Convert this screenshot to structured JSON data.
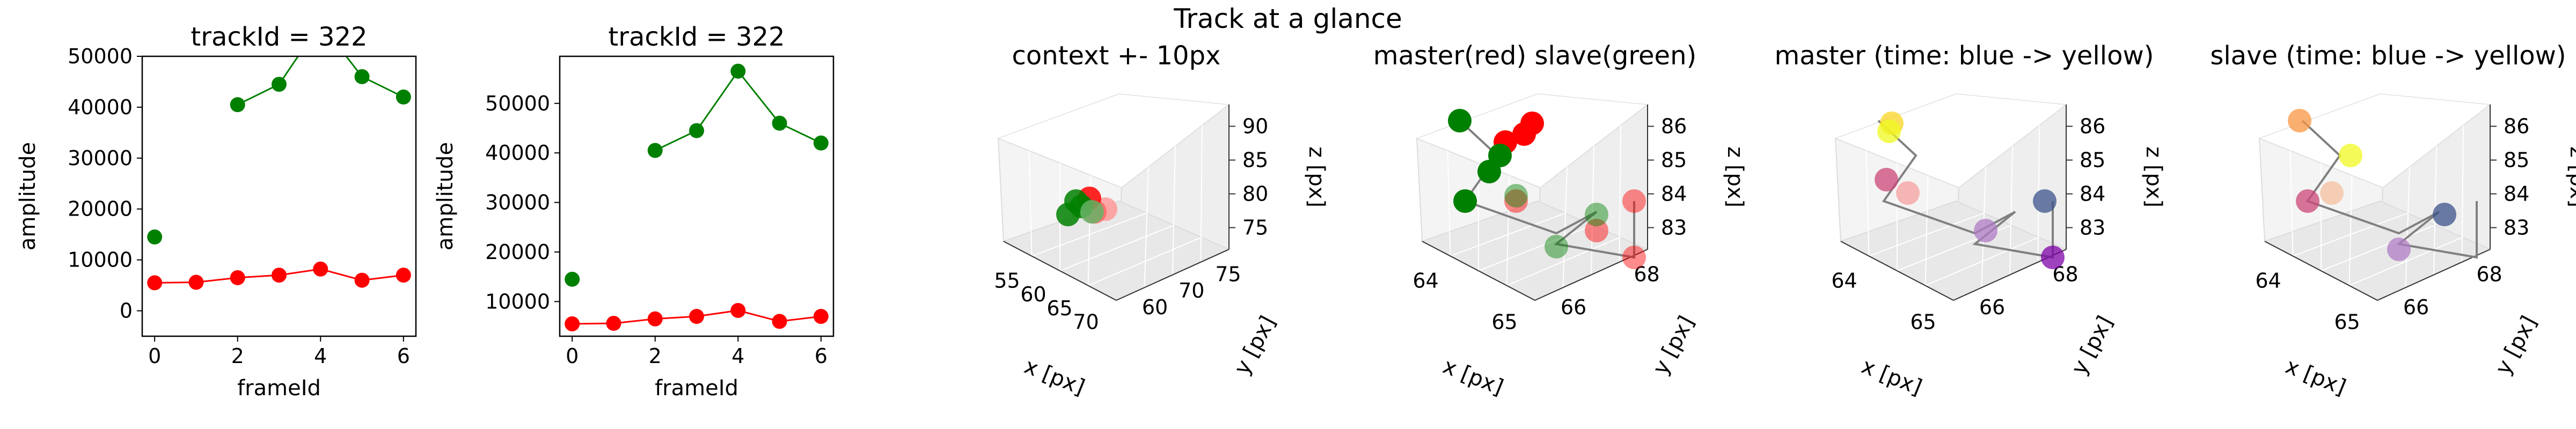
{
  "suptitle": "Track at a glance",
  "colors": {
    "master": "#ff0000",
    "slave": "#008000",
    "track_line": "#808080",
    "pane": "#f2f2f2"
  },
  "chart_data": [
    {
      "type": "line",
      "title": "trackId = 322",
      "xlabel": "frameId",
      "ylabel": "amplitude",
      "xlim": [
        -0.3,
        6.3
      ],
      "ylim": [
        -5000,
        50000
      ],
      "xticks": [
        0,
        2,
        4,
        6
      ],
      "yticks": [
        0,
        10000,
        20000,
        30000,
        40000,
        50000
      ],
      "series": [
        {
          "color": "#ff0000",
          "x": [
            0,
            1,
            2,
            3,
            4,
            5,
            6
          ],
          "y": [
            5500,
            5600,
            6500,
            7000,
            8200,
            6000,
            7000
          ]
        },
        {
          "color": "#008000",
          "x": [
            0
          ],
          "y": [
            14500
          ]
        },
        {
          "color": "#008000",
          "x": [
            2,
            3,
            4,
            5,
            6
          ],
          "y": [
            40500,
            44500,
            56500,
            46000,
            42000
          ]
        }
      ]
    },
    {
      "type": "line",
      "title": "trackId = 322",
      "xlabel": "frameId",
      "ylabel": "amplitude",
      "xlim": [
        -0.3,
        6.3
      ],
      "ylim": [
        3000,
        59500
      ],
      "xticks": [
        0,
        2,
        4,
        6
      ],
      "yticks": [
        10000,
        20000,
        30000,
        40000,
        50000
      ],
      "series": [
        {
          "color": "#ff0000",
          "x": [
            0,
            1,
            2,
            3,
            4,
            5,
            6
          ],
          "y": [
            5500,
            5600,
            6500,
            7000,
            8200,
            6000,
            7000
          ]
        },
        {
          "color": "#008000",
          "x": [
            0
          ],
          "y": [
            14500
          ]
        },
        {
          "color": "#008000",
          "x": [
            2,
            3,
            4,
            5,
            6
          ],
          "y": [
            40500,
            44500,
            56500,
            46000,
            42000
          ]
        }
      ]
    },
    {
      "type": "scatter",
      "title": "context +- 10px",
      "xlabel": "x [px]",
      "ylabel": "y [px]",
      "zlabel": "z [px]",
      "xticks": [
        "55",
        "60",
        "65",
        "70"
      ],
      "yticks": [
        "60",
        "70",
        "75"
      ],
      "zticks": [
        "75",
        "80",
        "85",
        "90"
      ]
    },
    {
      "type": "scatter",
      "title": "master(red) slave(green)",
      "xlabel": "x [px]",
      "ylabel": "y [px]",
      "zlabel": "z [px]",
      "xticks": [
        "64",
        "65"
      ],
      "yticks": [
        "66",
        "68"
      ],
      "zticks": [
        "83",
        "84",
        "85",
        "86"
      ]
    },
    {
      "type": "scatter",
      "title": "master (time: blue -> yellow)",
      "xlabel": "x [px]",
      "ylabel": "y [px]",
      "zlabel": "z [px]",
      "xticks": [
        "64",
        "65"
      ],
      "yticks": [
        "66",
        "68"
      ],
      "zticks": [
        "83",
        "84",
        "85",
        "86"
      ]
    },
    {
      "type": "scatter",
      "title": "slave (time: blue -> yellow)",
      "xlabel": "x [px]",
      "ylabel": "y [px]",
      "zlabel": "z [px]",
      "xticks": [
        "64",
        "65"
      ],
      "yticks": [
        "66",
        "68"
      ],
      "zticks": [
        "83",
        "84",
        "85",
        "86"
      ]
    }
  ]
}
